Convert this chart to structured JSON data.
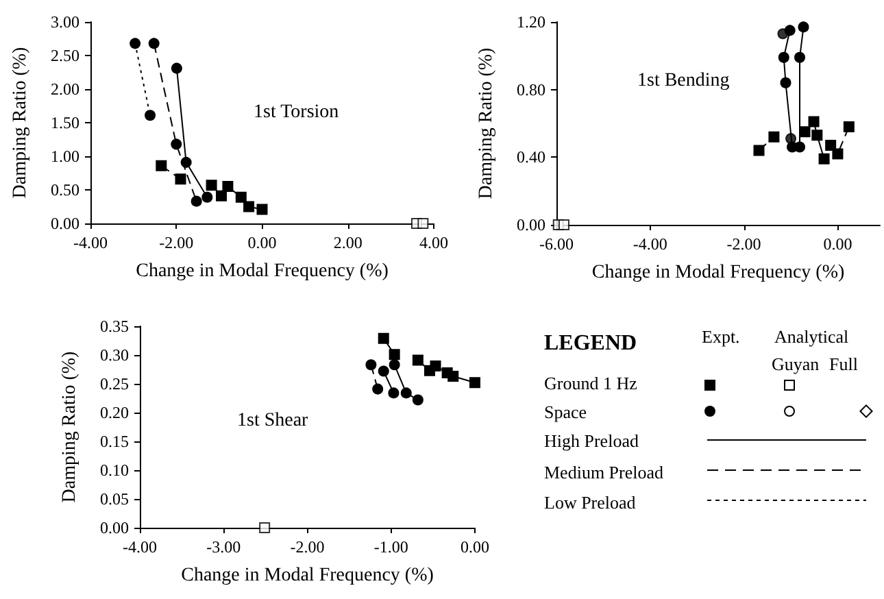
{
  "chart_data": [
    {
      "type": "line",
      "title": "1st Torsion",
      "xlabel": "Change in Modal Frequency (%)",
      "ylabel": "Damping Ratio (%)",
      "xlim": [
        -4,
        4
      ],
      "ylim": [
        0,
        3
      ],
      "xticks": [
        {
          "value": -4,
          "label": "-4.00"
        },
        {
          "value": -2,
          "label": "-2.00"
        },
        {
          "value": 0,
          "label": "0.00"
        },
        {
          "value": 2,
          "label": "2.00"
        },
        {
          "value": 4,
          "label": "4.00"
        }
      ],
      "yticks": [
        {
          "value": 0,
          "label": "0.00"
        },
        {
          "value": 0.5,
          "label": "0.50"
        },
        {
          "value": 1,
          "label": "1.00"
        },
        {
          "value": 1.5,
          "label": "1.50"
        },
        {
          "value": 2,
          "label": "2.00"
        },
        {
          "value": 2.5,
          "label": "2.50"
        },
        {
          "value": 3,
          "label": "3.00"
        }
      ],
      "series": [
        {
          "type": "line",
          "marker": "circle",
          "line_style": "solid",
          "color": "#000000",
          "x": [
            -1.99,
            -1.77,
            -1.28
          ],
          "values": [
            2.31,
            0.91,
            0.39
          ]
        },
        {
          "type": "line",
          "marker": "circle",
          "line_style": "dashed",
          "color": "#000000",
          "x": [
            -2.52,
            -2.0,
            -1.53
          ],
          "values": [
            2.68,
            1.18,
            0.33
          ]
        },
        {
          "type": "line",
          "marker": "circle",
          "line_style": "dotted",
          "color": "#000000",
          "x": [
            -2.96,
            -2.61
          ],
          "values": [
            2.68,
            1.61
          ]
        },
        {
          "type": "line",
          "marker": "square",
          "line_style": "dashed",
          "color": "#000000",
          "x": [
            -2.35,
            -1.9
          ],
          "values": [
            0.86,
            0.66
          ]
        },
        {
          "type": "line",
          "marker": "square",
          "line_style": "solid",
          "color": "#000000",
          "x": [
            -1.18,
            -0.95,
            -0.8,
            -0.49,
            -0.31,
            0
          ],
          "values": [
            0.57,
            0.41,
            0.55,
            0.39,
            0.25,
            0.21
          ]
        },
        {
          "type": "scatter",
          "marker": "square",
          "color": "#ffffff",
          "x": [
            3.6,
            3.75
          ],
          "values": [
            0,
            0
          ]
        }
      ]
    },
    {
      "type": "line",
      "title": "1st Bending",
      "xlabel": "Change in Modal Frequency (%)",
      "ylabel": "Damping Ratio (%)",
      "xlim": [
        -6,
        0.9
      ],
      "ylim": [
        0,
        1.2
      ],
      "xticks": [
        {
          "value": -6,
          "label": "-6.00"
        },
        {
          "value": -4,
          "label": "-4.00"
        },
        {
          "value": -2,
          "label": "-2.00"
        },
        {
          "value": 0,
          "label": "0.00"
        }
      ],
      "yticks": [
        {
          "value": 0,
          "label": "0.00"
        },
        {
          "value": 0.4,
          "label": "0.40"
        },
        {
          "value": 0.8,
          "label": "0.80"
        },
        {
          "value": 1.2,
          "label": "1.20"
        }
      ],
      "series": [
        {
          "type": "line",
          "marker": "circle",
          "line_style": "solid",
          "color": "#000000",
          "x": [
            -1.02,
            -1.15,
            -1.11,
            -0.97
          ],
          "values": [
            1.15,
            0.99,
            0.84,
            0.46
          ]
        },
        {
          "type": "line",
          "marker": "circle",
          "line_style": "solid",
          "color": "#000000",
          "x": [
            -0.73,
            -0.81,
            -0.81
          ],
          "values": [
            1.17,
            0.99,
            0.46
          ]
        },
        {
          "type": "scatter",
          "marker": "circle",
          "color": "#000000",
          "x": [
            -1.17,
            -1.0
          ],
          "values": [
            1.13,
            0.51
          ]
        },
        {
          "type": "line",
          "marker": "square",
          "line_style": "dashed",
          "color": "#000000",
          "x": [
            -1.68,
            -1.36
          ],
          "values": [
            0.44,
            0.52
          ]
        },
        {
          "type": "line",
          "marker": "square",
          "line_style": "solid",
          "color": "#000000",
          "x": [
            -0.7,
            -0.51,
            -0.44,
            -0.29
          ],
          "values": [
            0.55,
            0.61,
            0.53,
            0.39
          ]
        },
        {
          "type": "line",
          "marker": "square",
          "line_style": "dashed",
          "color": "#000000",
          "x": [
            -0.15,
            0,
            0.24
          ],
          "values": [
            0.47,
            0.42,
            0.58
          ]
        },
        {
          "type": "scatter",
          "marker": "square",
          "color": "#ffffff",
          "x": [
            -5.96,
            -5.84
          ],
          "values": [
            0,
            0
          ]
        }
      ]
    },
    {
      "type": "line",
      "title": "1st Shear",
      "xlabel": "Change in Modal Frequency (%)",
      "ylabel": "Damping Ratio (%)",
      "xlim": [
        -4,
        0
      ],
      "ylim": [
        0,
        0.35
      ],
      "xticks": [
        {
          "value": -4,
          "label": "-4.00"
        },
        {
          "value": -3,
          "label": "-3.00"
        },
        {
          "value": -2,
          "label": "-2.00"
        },
        {
          "value": -1,
          "label": "-1.00"
        },
        {
          "value": 0,
          "label": "0.00"
        }
      ],
      "yticks": [
        {
          "value": 0,
          "label": "0.00"
        },
        {
          "value": 0.05,
          "label": "0.05"
        },
        {
          "value": 0.1,
          "label": "0.10"
        },
        {
          "value": 0.15,
          "label": "0.15"
        },
        {
          "value": 0.2,
          "label": "0.20"
        },
        {
          "value": 0.25,
          "label": "0.25"
        },
        {
          "value": 0.3,
          "label": "0.30"
        },
        {
          "value": 0.35,
          "label": "0.35"
        }
      ],
      "series": [
        {
          "type": "line",
          "marker": "square",
          "line_style": "solid",
          "color": "#000000",
          "x": [
            -1.09,
            -0.96
          ],
          "values": [
            0.329,
            0.301
          ]
        },
        {
          "type": "line",
          "marker": "square",
          "line_style": "solid",
          "color": "#000000",
          "x": [
            -0.68,
            -0.54,
            -0.47,
            -0.33,
            -0.26,
            0
          ],
          "values": [
            0.291,
            0.273,
            0.281,
            0.269,
            0.263,
            0.252
          ]
        },
        {
          "type": "line",
          "marker": "circle",
          "line_style": "dashed",
          "color": "#000000",
          "x": [
            -1.24,
            -1.16
          ],
          "values": [
            0.283,
            0.241
          ]
        },
        {
          "type": "line",
          "marker": "circle",
          "line_style": "solid",
          "color": "#000000",
          "x": [
            -1.09,
            -0.97
          ],
          "values": [
            0.272,
            0.234
          ]
        },
        {
          "type": "line",
          "marker": "circle",
          "line_style": "solid",
          "color": "#000000",
          "x": [
            -0.96,
            -0.82,
            -0.68
          ],
          "values": [
            0.283,
            0.234,
            0.222
          ]
        },
        {
          "type": "scatter",
          "marker": "square",
          "color": "#ffffff",
          "x": [
            -2.51
          ],
          "values": [
            0
          ]
        }
      ]
    },
    {
      "type": "other",
      "title": "LEGEND",
      "annotations": [
        "Expt.",
        "Analytical",
        "Guyan",
        "Full",
        "Ground 1 Hz",
        "Space",
        "High Preload",
        "Medium Preload",
        "Low Preload"
      ]
    }
  ]
}
